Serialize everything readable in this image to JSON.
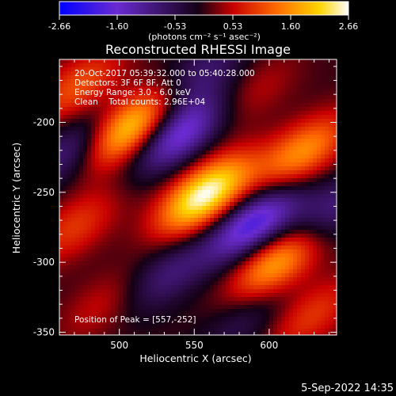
{
  "colorbar": {
    "ticks": [
      "-2.66",
      "-1.60",
      "-0.53",
      "0.53",
      "1.60",
      "2.66"
    ],
    "units": "(photons cm⁻² s⁻¹ asec⁻²)"
  },
  "chart": {
    "title": "Reconstructed RHESSI Image",
    "info_lines": [
      "20-Oct-2017 05:39:32.000 to 05:40:28.000",
      "Detectors: 3F 6F 8F, Att 0",
      "Energy Range: 3.0 - 6.0 keV",
      "Clean    Total counts: 2.96E+04"
    ],
    "peak_text": "Position of Peak = [557,-252]",
    "xlabel": "Heliocentric X (arcsec)",
    "ylabel": "Heliocentric Y (arcsec)",
    "xticks": [
      "500",
      "550",
      "600"
    ],
    "yticks": [
      "-200",
      "-250",
      "-300",
      "-350"
    ]
  },
  "footer_date": "5-Sep-2022 14:35",
  "chart_data": {
    "type": "heatmap",
    "title": "Reconstructed RHESSI Image",
    "xlabel": "Heliocentric X (arcsec)",
    "ylabel": "Heliocentric Y (arcsec)",
    "xlim": [
      460,
      645
    ],
    "ylim": [
      -352,
      -155
    ],
    "color_scale": [
      -2.66,
      2.66
    ],
    "colormap": [
      "#0000ff",
      "#6a2bd0",
      "#140014",
      "#c80000",
      "#ff6a00",
      "#ffd400",
      "#ffffff"
    ],
    "peak": [
      557,
      -252
    ],
    "blobs": [
      {
        "x": 505,
        "y": -205,
        "value": 2.4
      },
      {
        "x": 557,
        "y": -252,
        "value": 2.66
      },
      {
        "x": 622,
        "y": -222,
        "value": 1.6
      },
      {
        "x": 605,
        "y": -300,
        "value": 1.9
      },
      {
        "x": 470,
        "y": -275,
        "value": 0.9
      },
      {
        "x": 490,
        "y": -330,
        "value": 0.6
      },
      {
        "x": 628,
        "y": -338,
        "value": 0.9
      },
      {
        "x": 590,
        "y": -178,
        "value": 0.5
      },
      {
        "x": 472,
        "y": -175,
        "value": 1.1
      },
      {
        "x": 540,
        "y": -208,
        "value": -1.8
      },
      {
        "x": 590,
        "y": -272,
        "value": -2.0
      },
      {
        "x": 472,
        "y": -218,
        "value": -1.2
      },
      {
        "x": 640,
        "y": -265,
        "value": -1.0
      },
      {
        "x": 530,
        "y": -310,
        "value": -0.9
      },
      {
        "x": 555,
        "y": -165,
        "value": -0.8
      },
      {
        "x": 585,
        "y": -340,
        "value": -0.6
      }
    ]
  }
}
